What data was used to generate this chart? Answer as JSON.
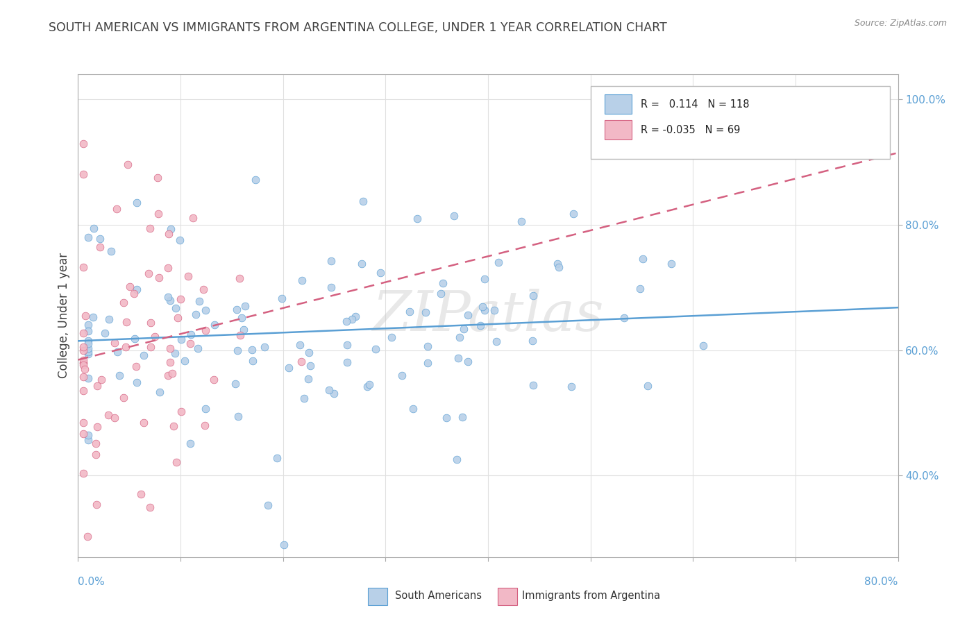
{
  "title": "SOUTH AMERICAN VS IMMIGRANTS FROM ARGENTINA COLLEGE, UNDER 1 YEAR CORRELATION CHART",
  "source_text": "Source: ZipAtlas.com",
  "ylabel": "College, Under 1 year",
  "xlim": [
    0.0,
    0.8
  ],
  "ylim": [
    0.27,
    1.04
  ],
  "blue_R": 0.114,
  "blue_N": 118,
  "pink_R": -0.035,
  "pink_N": 69,
  "blue_fill": "#b8d0e8",
  "blue_edge": "#5a9fd4",
  "pink_fill": "#f2b8c6",
  "pink_edge": "#d46080",
  "blue_line": "#5a9fd4",
  "pink_line": "#d46080",
  "watermark": "ZIPatlas",
  "legend_blue_label": "South Americans",
  "legend_pink_label": "Immigrants from Argentina",
  "bg_color": "#ffffff",
  "grid_color": "#e0e0e0",
  "title_color": "#404040",
  "axis_label_color": "#5a9fd4",
  "y_ticks": [
    0.4,
    0.6,
    0.8,
    1.0
  ],
  "y_tick_labels": [
    "40.0%",
    "60.0%",
    "80.0%",
    "100.0%"
  ],
  "x_left_label": "0.0%",
  "x_right_label": "80.0%"
}
